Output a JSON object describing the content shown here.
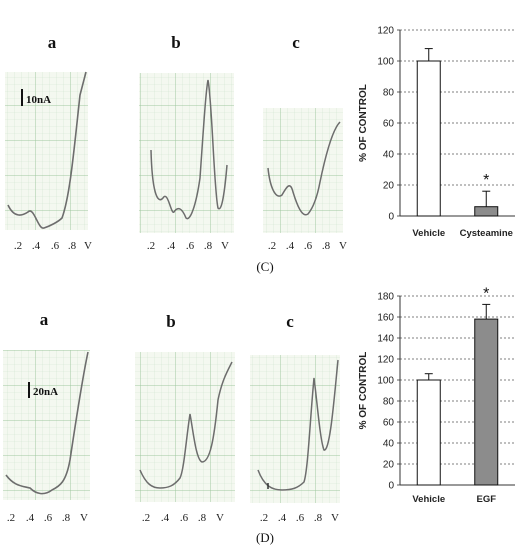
{
  "panels": [
    {
      "id": "C",
      "caption": "(C)",
      "trace_labels": [
        "a",
        "b",
        "c"
      ],
      "scale_bar": "10nA",
      "voltage_ticks": [
        ".2",
        ".4",
        ".6",
        ".8",
        "V"
      ],
      "chart_data": {
        "type": "bar",
        "categories": [
          "Vehicle",
          "Cysteamine"
        ],
        "values": [
          100,
          6
        ],
        "errors": [
          8,
          10
        ],
        "colors": [
          "#ffffff",
          "#8c8c8c"
        ],
        "annotations": [
          "",
          "*"
        ],
        "ylabel": "% OF CONTROL",
        "ylim": [
          0,
          120
        ],
        "yticks": [
          0,
          20,
          40,
          60,
          80,
          100,
          120
        ],
        "grid": "horizontal-dashed"
      }
    },
    {
      "id": "D",
      "caption": "(D)",
      "trace_labels": [
        "a",
        "b",
        "c"
      ],
      "scale_bar": "20nA",
      "voltage_ticks": [
        ".2",
        ".4",
        ".6",
        ".8",
        "V"
      ],
      "chart_data": {
        "type": "bar",
        "categories": [
          "Vehicle",
          "EGF"
        ],
        "values": [
          100,
          158
        ],
        "errors": [
          6,
          14
        ],
        "colors": [
          "#ffffff",
          "#8c8c8c"
        ],
        "annotations": [
          "",
          "*"
        ],
        "ylabel": "% OF CONTROL",
        "ylim": [
          0,
          180
        ],
        "yticks": [
          0,
          20,
          40,
          60,
          80,
          100,
          120,
          140,
          160,
          180
        ],
        "grid": "horizontal-dashed"
      }
    }
  ]
}
